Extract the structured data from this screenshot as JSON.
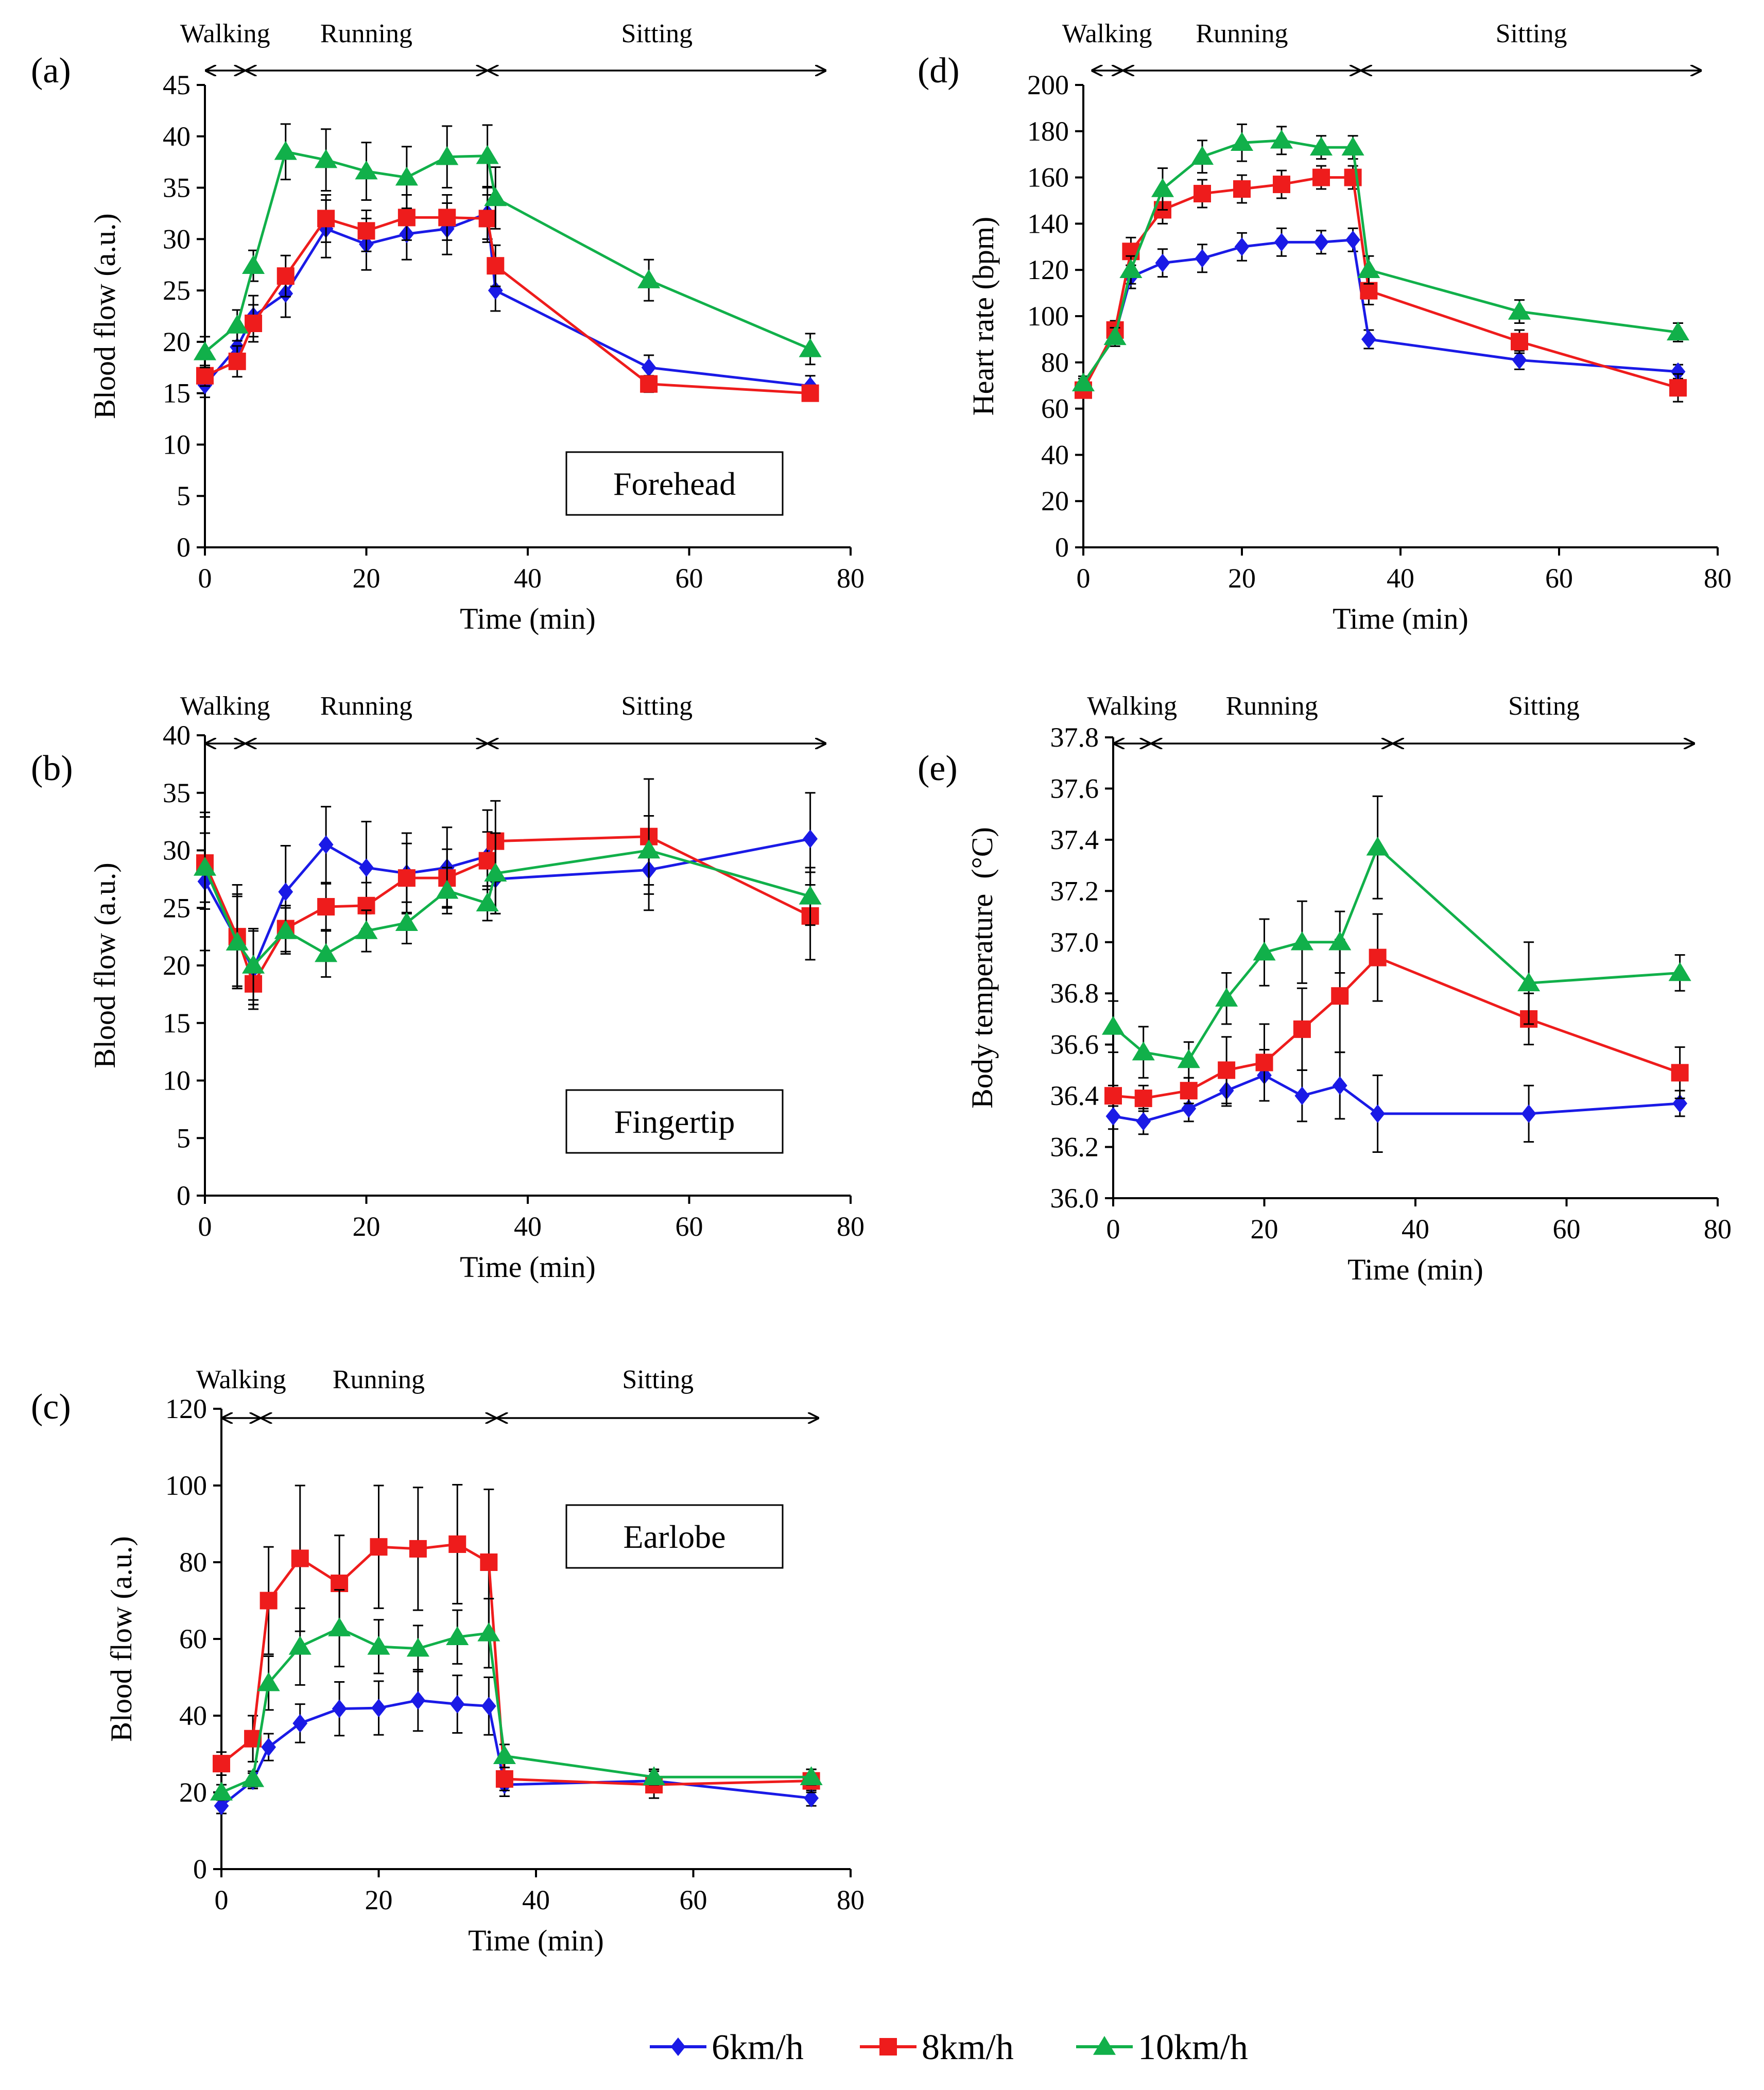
{
  "colors": {
    "s6": "#1a1ae6",
    "s8": "#ee1c1c",
    "s10": "#11b04a",
    "axis": "#000000"
  },
  "legend": [
    {
      "key": "s6",
      "label": "6km/h",
      "marker": "diamond"
    },
    {
      "key": "s8",
      "label": "8km/h",
      "marker": "square"
    },
    {
      "key": "s10",
      "label": "10km/h",
      "marker": "triangle"
    }
  ],
  "chart_data": [
    {
      "id": "a",
      "type": "line",
      "panel_label": "(a)",
      "inset_label": "Forehead",
      "xlabel": "Time (min)",
      "ylabel": "Blood flow (a.u.)",
      "xlim": [
        0,
        80
      ],
      "ylim": [
        0,
        45
      ],
      "xticks": [
        0,
        20,
        40,
        60,
        80
      ],
      "yticks": [
        0,
        5,
        10,
        15,
        20,
        25,
        30,
        35,
        40,
        45
      ],
      "phases": [
        {
          "label": "Walking",
          "start": 0,
          "end": 5
        },
        {
          "label": "Running",
          "start": 5,
          "end": 35
        },
        {
          "label": "Sitting",
          "start": 35,
          "end": 77
        }
      ],
      "series": [
        {
          "key": "s6",
          "name": "6km/h",
          "x": [
            0,
            4,
            6,
            10,
            15,
            20,
            25,
            30,
            35,
            36,
            55,
            75
          ],
          "y": [
            15.8,
            19.5,
            22.5,
            24.7,
            31.0,
            29.5,
            30.5,
            31.0,
            32.5,
            25.0,
            17.5,
            15.7
          ],
          "err": [
            1.2,
            1.5,
            2.0,
            2.3,
            2.8,
            2.5,
            2.5,
            2.5,
            2.5,
            2.0,
            1.2,
            1.0
          ]
        },
        {
          "key": "s8",
          "name": "8km/h",
          "x": [
            0,
            4,
            6,
            10,
            15,
            20,
            25,
            30,
            35,
            36,
            55,
            75
          ],
          "y": [
            16.7,
            18.1,
            21.8,
            26.4,
            32.0,
            30.8,
            32.1,
            32.1,
            32.0,
            27.4,
            15.9,
            15.0
          ],
          "err": [
            1.0,
            1.5,
            1.8,
            2.0,
            2.3,
            2.0,
            2.2,
            2.2,
            2.3,
            2.0,
            0.8,
            0.7
          ]
        },
        {
          "key": "s10",
          "name": "10km/h",
          "x": [
            0,
            4,
            6,
            10,
            15,
            20,
            25,
            30,
            35,
            36,
            55,
            75
          ],
          "y": [
            19.0,
            21.6,
            27.4,
            38.5,
            37.7,
            36.6,
            36.0,
            38.0,
            38.1,
            34.0,
            26.0,
            19.3
          ],
          "err": [
            1.5,
            1.5,
            1.5,
            2.7,
            3.0,
            2.8,
            3.0,
            3.0,
            3.0,
            3.0,
            2.0,
            1.5
          ]
        }
      ]
    },
    {
      "id": "b",
      "type": "line",
      "panel_label": "(b)",
      "inset_label": "Fingertip",
      "xlabel": "Time (min)",
      "ylabel": "Blood flow (a.u.)",
      "xlim": [
        0,
        80
      ],
      "ylim": [
        0,
        40
      ],
      "xticks": [
        0,
        20,
        40,
        60,
        80
      ],
      "yticks": [
        0,
        5,
        10,
        15,
        20,
        25,
        30,
        35,
        40
      ],
      "phases": [
        {
          "label": "Walking",
          "start": 0,
          "end": 5
        },
        {
          "label": "Running",
          "start": 5,
          "end": 35
        },
        {
          "label": "Sitting",
          "start": 35,
          "end": 77
        }
      ],
      "series": [
        {
          "key": "s6",
          "name": "6km/h",
          "x": [
            0,
            4,
            6,
            10,
            15,
            20,
            25,
            30,
            35,
            36,
            55,
            75
          ],
          "y": [
            27.3,
            22.2,
            19.7,
            26.4,
            30.5,
            28.5,
            28.0,
            28.5,
            29.5,
            27.5,
            28.3,
            31.0
          ],
          "err": [
            6.0,
            4.0,
            3.5,
            4.0,
            3.3,
            4.0,
            3.5,
            3.5,
            4.0,
            3.0,
            3.5,
            4.0
          ]
        },
        {
          "key": "s8",
          "name": "8km/h",
          "x": [
            0,
            4,
            6,
            10,
            15,
            20,
            25,
            30,
            35,
            36,
            55,
            75
          ],
          "y": [
            28.9,
            22.5,
            18.4,
            23.2,
            25.1,
            25.2,
            27.6,
            27.6,
            29.1,
            30.8,
            31.2,
            24.3
          ],
          "err": [
            4.0,
            4.5,
            1.8,
            2.0,
            2.0,
            2.0,
            3.0,
            2.5,
            2.5,
            3.5,
            5.0,
            3.8
          ]
        },
        {
          "key": "s10",
          "name": "10km/h",
          "x": [
            0,
            4,
            6,
            10,
            15,
            20,
            25,
            30,
            35,
            36,
            55,
            75
          ],
          "y": [
            28.5,
            22.0,
            20.0,
            23.0,
            21.0,
            23.0,
            23.7,
            26.5,
            25.4,
            28.0,
            30.0,
            26.0
          ],
          "err": [
            3.0,
            4.0,
            3.0,
            2.0,
            2.0,
            1.8,
            1.8,
            2.0,
            1.5,
            3.5,
            3.0,
            2.5
          ]
        }
      ]
    },
    {
      "id": "c",
      "type": "line",
      "panel_label": "(c)",
      "inset_label": "Earlobe",
      "xlabel": "Time (min)",
      "ylabel": "Blood flow (a.u.)",
      "xlim": [
        0,
        80
      ],
      "ylim": [
        0,
        120
      ],
      "xticks": [
        0,
        20,
        40,
        60,
        80
      ],
      "yticks": [
        0,
        20,
        40,
        60,
        80,
        100,
        120
      ],
      "phases": [
        {
          "label": "Walking",
          "start": 0,
          "end": 5
        },
        {
          "label": "Running",
          "start": 5,
          "end": 35
        },
        {
          "label": "Sitting",
          "start": 35,
          "end": 76
        }
      ],
      "series": [
        {
          "key": "s6",
          "name": "6km/h",
          "x": [
            0,
            4,
            6,
            10,
            15,
            20,
            25,
            30,
            34,
            36,
            55,
            75
          ],
          "y": [
            16.5,
            23.0,
            31.8,
            38.0,
            41.8,
            42.0,
            44.0,
            43.0,
            42.5,
            22.0,
            23.0,
            18.5
          ],
          "err": [
            2.0,
            2.0,
            3.5,
            5.0,
            7.0,
            7.0,
            8.0,
            7.5,
            7.5,
            3.0,
            3.0,
            2.0
          ]
        },
        {
          "key": "s8",
          "name": "8km/h",
          "x": [
            0,
            4,
            6,
            10,
            15,
            20,
            25,
            30,
            34,
            36,
            55,
            75
          ],
          "y": [
            27.5,
            34.0,
            70.0,
            81.0,
            74.5,
            84.0,
            83.5,
            84.7,
            80.0,
            23.5,
            22.0,
            23.0
          ],
          "err": [
            3.0,
            6.0,
            14.0,
            19.0,
            12.5,
            16.0,
            16.0,
            15.5,
            19.0,
            3.0,
            3.5,
            3.0
          ]
        },
        {
          "key": "s10",
          "name": "10km/h",
          "x": [
            0,
            4,
            6,
            10,
            15,
            20,
            25,
            30,
            34,
            36,
            55,
            75
          ],
          "y": [
            20.0,
            23.5,
            48.5,
            58.0,
            62.8,
            58.0,
            57.5,
            60.5,
            61.5,
            29.5,
            24.0,
            24.0
          ],
          "err": [
            2.0,
            2.0,
            7.0,
            10.0,
            10.0,
            7.0,
            6.0,
            7.0,
            9.0,
            3.0,
            2.0,
            2.0
          ]
        }
      ]
    },
    {
      "id": "d",
      "type": "line",
      "panel_label": "(d)",
      "xlabel": "Time (min)",
      "ylabel": "Heart rate (bpm)",
      "xlim": [
        0,
        80
      ],
      "ylim": [
        0,
        200
      ],
      "xticks": [
        0,
        20,
        40,
        60,
        80
      ],
      "yticks": [
        0,
        20,
        40,
        60,
        80,
        100,
        120,
        140,
        160,
        180,
        200
      ],
      "phases": [
        {
          "label": "Walking",
          "start": 1,
          "end": 5
        },
        {
          "label": "Running",
          "start": 5,
          "end": 35
        },
        {
          "label": "Sitting",
          "start": 35,
          "end": 78
        }
      ],
      "series": [
        {
          "key": "s6",
          "name": "6km/h",
          "x": [
            0,
            4,
            6,
            10,
            15,
            20,
            25,
            30,
            34,
            36,
            55,
            75
          ],
          "y": [
            70,
            92,
            117,
            123,
            125,
            130,
            132,
            132,
            133,
            90,
            81,
            76
          ],
          "err": [
            3,
            4,
            5,
            6,
            6,
            6,
            6,
            5,
            5,
            4,
            4,
            3
          ]
        },
        {
          "key": "s8",
          "name": "8km/h",
          "x": [
            0,
            4,
            6,
            10,
            15,
            20,
            25,
            30,
            34,
            36,
            55,
            75
          ],
          "y": [
            68,
            94,
            128,
            146,
            153,
            155,
            157,
            160,
            160,
            111,
            89,
            69
          ],
          "err": [
            3,
            4,
            6,
            6,
            6,
            6,
            6,
            5,
            5,
            6,
            5,
            6
          ]
        },
        {
          "key": "s10",
          "name": "10km/h",
          "x": [
            0,
            4,
            6,
            10,
            15,
            20,
            25,
            30,
            34,
            36,
            55,
            75
          ],
          "y": [
            71,
            91,
            120,
            155,
            169,
            175,
            176,
            173,
            173,
            120,
            102,
            93
          ],
          "err": [
            3,
            4,
            6,
            9,
            7,
            8,
            6,
            5,
            5,
            6,
            5,
            4
          ]
        }
      ]
    },
    {
      "id": "e",
      "type": "line",
      "panel_label": "(e)",
      "xlabel": "Time (min)",
      "ylabel": "Body temperature  (°C)",
      "xlim": [
        0,
        80
      ],
      "ylim": [
        36.0,
        37.8
      ],
      "decimals": 1,
      "xticks": [
        0,
        20,
        40,
        60,
        80
      ],
      "yticks": [
        36.0,
        36.2,
        36.4,
        36.6,
        36.8,
        37.0,
        37.2,
        37.4,
        37.6,
        37.8
      ],
      "phases": [
        {
          "label": "Walking",
          "start": 0,
          "end": 5
        },
        {
          "label": "Running",
          "start": 5,
          "end": 37
        },
        {
          "label": "Sitting",
          "start": 37,
          "end": 77
        }
      ],
      "series": [
        {
          "key": "s6",
          "name": "6km/h",
          "x": [
            0,
            4,
            10,
            15,
            20,
            25,
            30,
            35,
            55,
            75
          ],
          "y": [
            36.32,
            36.3,
            36.35,
            36.42,
            36.48,
            36.4,
            36.44,
            36.33,
            36.33,
            36.37
          ],
          "err": [
            0.05,
            0.05,
            0.05,
            0.06,
            0.1,
            0.1,
            0.13,
            0.15,
            0.11,
            0.05
          ]
        },
        {
          "key": "s8",
          "name": "8km/h",
          "x": [
            0,
            4,
            10,
            15,
            20,
            25,
            30,
            35,
            55,
            75
          ],
          "y": [
            36.4,
            36.39,
            36.42,
            36.5,
            36.53,
            36.66,
            36.79,
            36.94,
            36.7,
            36.49
          ],
          "err": [
            0.04,
            0.05,
            0.05,
            0.13,
            0.15,
            0.16,
            0.22,
            0.17,
            0.1,
            0.1
          ]
        },
        {
          "key": "s10",
          "name": "10km/h",
          "x": [
            0,
            4,
            10,
            15,
            20,
            25,
            30,
            35,
            55,
            75
          ],
          "y": [
            36.67,
            36.57,
            36.54,
            36.78,
            36.96,
            37.0,
            37.0,
            37.37,
            36.84,
            36.88
          ],
          "err": [
            0.1,
            0.1,
            0.07,
            0.1,
            0.13,
            0.16,
            0.12,
            0.2,
            0.16,
            0.07
          ]
        }
      ]
    }
  ]
}
